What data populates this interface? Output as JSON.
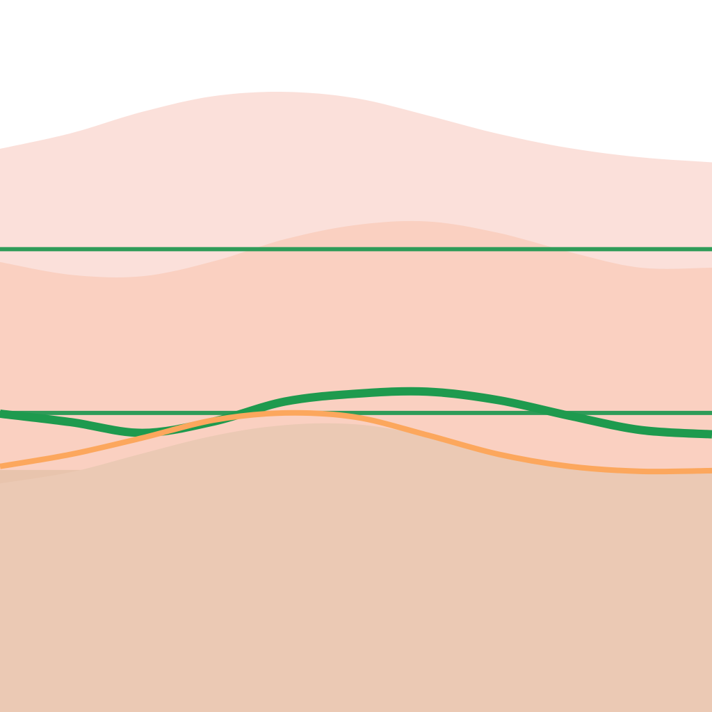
{
  "chart_data": {
    "type": "area",
    "title": "",
    "xlabel": "",
    "ylabel": "",
    "xlim": [
      0,
      100
    ],
    "ylim": [
      0,
      100
    ],
    "grid": false,
    "legend": "none",
    "x": [
      0,
      10,
      20,
      30,
      40,
      50,
      60,
      70,
      80,
      90,
      100
    ],
    "areas": [
      {
        "color": "#fbe0da",
        "values": [
          79.1,
          81.3,
          84.3,
          86.5,
          87.1,
          86.2,
          83.8,
          81.2,
          79.2,
          77.9,
          77.2
        ]
      },
      {
        "color": "#fad0c1",
        "values": [
          63.2,
          61.4,
          61.2,
          63.3,
          66.4,
          68.4,
          68.9,
          67.3,
          64.6,
          62.4,
          62.4
        ]
      },
      {
        "color": "#e8c4ad",
        "values": [
          34.0,
          34.0,
          34.0,
          34.0,
          34.0,
          34.0,
          34.0,
          34.0,
          34.0,
          34.0,
          34.0
        ]
      },
      {
        "color": "#ebc9b4",
        "values": [
          32.1,
          33.7,
          36.3,
          38.8,
          40.3,
          40.4,
          38.8,
          36.4,
          34.4,
          33.4,
          33.7
        ]
      }
    ],
    "series": [
      {
        "color": "#1e9a4e",
        "width": 12,
        "values": [
          41.9,
          40.7,
          39.2,
          40.8,
          43.6,
          44.7,
          45.0,
          43.8,
          41.6,
          39.6,
          39.0
        ]
      },
      {
        "color": "#fca75d",
        "width": 8,
        "values": [
          34.5,
          36.2,
          38.5,
          41.0,
          42.0,
          41.4,
          38.9,
          36.2,
          34.5,
          33.8,
          33.9
        ]
      }
    ],
    "reference_lines": [
      {
        "color": "#2e9b58",
        "value": 65.0
      },
      {
        "color": "#2e9b58",
        "value": 42.0
      }
    ]
  }
}
